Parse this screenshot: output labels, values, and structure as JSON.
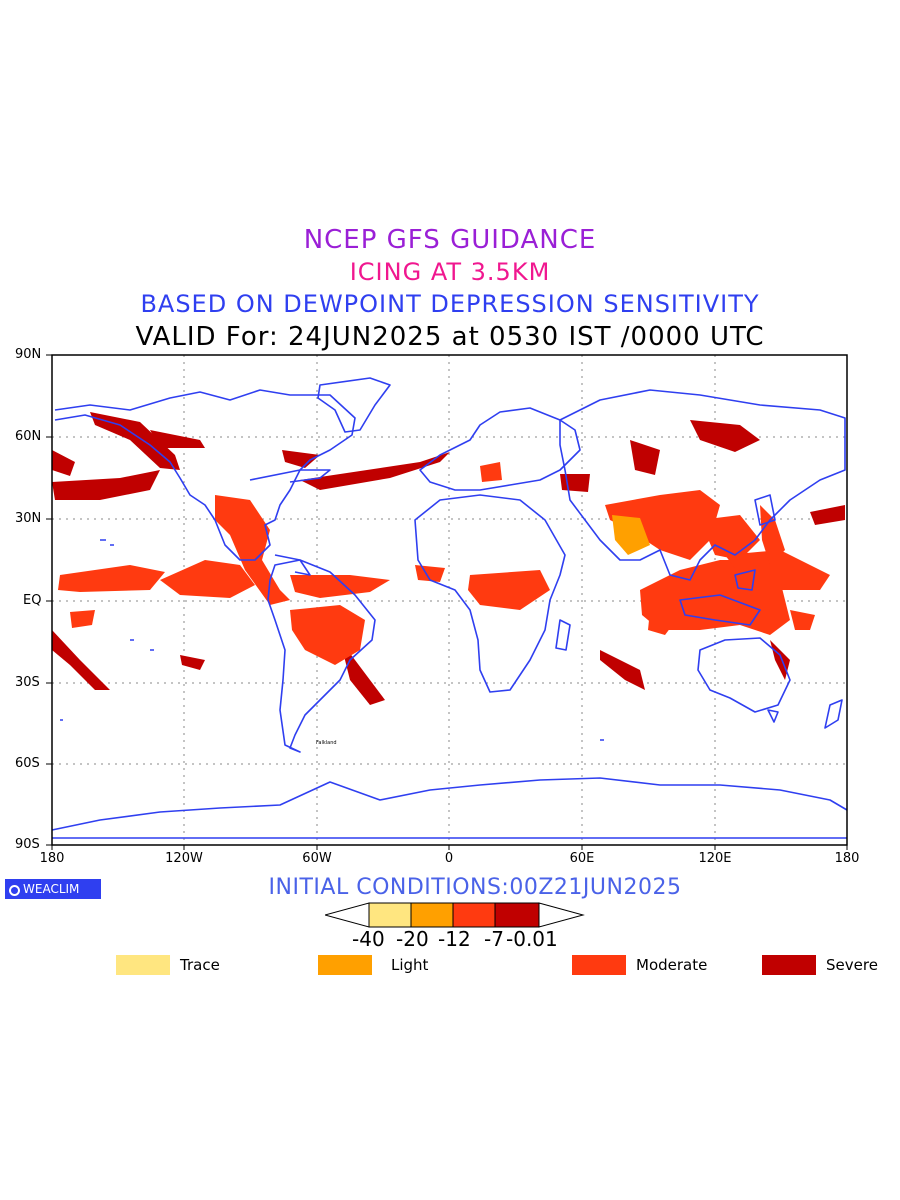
{
  "title": {
    "line1": "NCEP GFS GUIDANCE",
    "line2": "ICING AT 3.5KM",
    "line3": "BASED ON DEWPOINT DEPRESSION SENSITIVITY",
    "line4": "VALID For: 24JUN2025 at 0530 IST /0000 UTC"
  },
  "axes": {
    "lat_labels": [
      "90N",
      "60N",
      "30N",
      "EQ",
      "30S",
      "60S",
      "90S"
    ],
    "lon_labels": [
      "180",
      "120W",
      "60W",
      "0",
      "60E",
      "120E",
      "180"
    ]
  },
  "logo": {
    "text": "WEACLIM"
  },
  "initial_conditions": "INITIAL CONDITIONS:00Z21JUN2025",
  "colorbar": {
    "labels": [
      "-40",
      "-20",
      "-12",
      "-7",
      "-0.01"
    ],
    "colors": [
      "#ffe680",
      "#ffa000",
      "#ff3a10",
      "#c00000"
    ]
  },
  "legend": [
    {
      "label": "Trace",
      "color": "#ffe680"
    },
    {
      "label": "Light",
      "color": "#ffa000"
    },
    {
      "label": "Moderate",
      "color": "#ff3a10"
    },
    {
      "label": "Severe",
      "color": "#c00000"
    }
  ],
  "colors": {
    "coastline": "#2f3ff0",
    "moderate": "#ff3a10",
    "severe": "#c00000",
    "light": "#ffa000"
  },
  "map_labels": [
    "Falkland"
  ]
}
